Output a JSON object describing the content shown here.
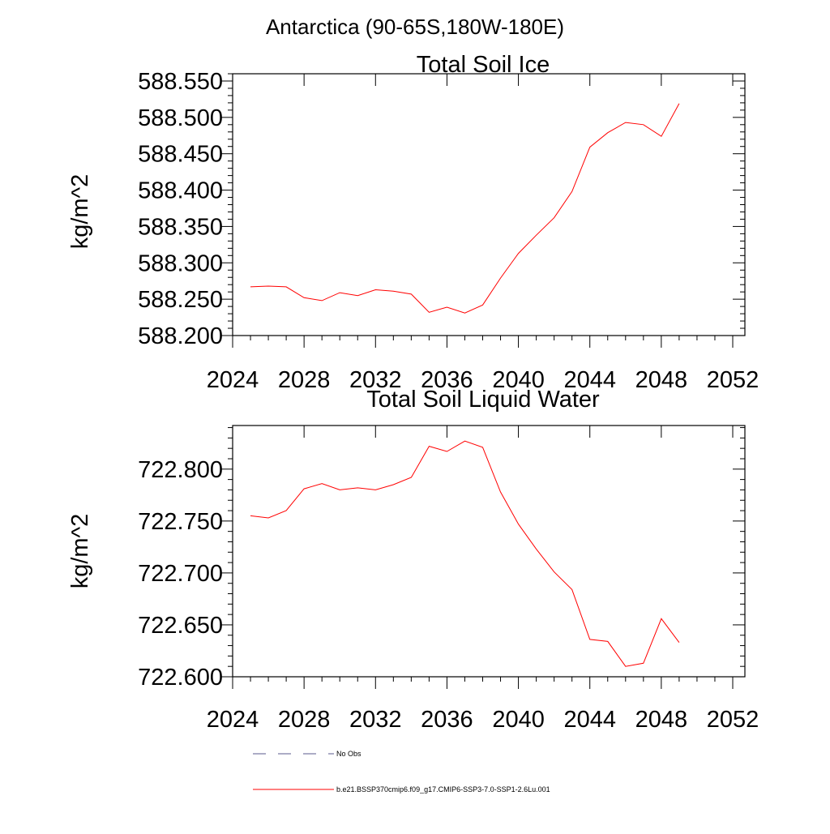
{
  "header": {
    "title": "Antarctica (90-65S,180W-180E)"
  },
  "chart_data": [
    {
      "type": "line",
      "title": "Total Soil Ice",
      "xlabel": "",
      "ylabel": "kg/m^2",
      "xlim": [
        2024,
        2052
      ],
      "ylim": [
        588.2,
        588.56
      ],
      "x_ticks": [
        2024,
        2028,
        2032,
        2036,
        2040,
        2044,
        2048,
        2052
      ],
      "x_tick_labels": [
        "2024",
        "2028",
        "2032",
        "2036",
        "2040",
        "2044",
        "2048",
        "2052"
      ],
      "y_ticks": [
        588.2,
        588.25,
        588.3,
        588.35,
        588.4,
        588.45,
        588.5,
        588.55
      ],
      "y_tick_labels": [
        "588.200",
        "588.250",
        "588.300",
        "588.350",
        "588.400",
        "588.450",
        "588.500",
        "588.550"
      ],
      "grid": false,
      "series": [
        {
          "name": "b.e21.BSSP370cmip6.f09_g17.CMIP6-SSP3-7.0-SSP1-2.6Lu.001",
          "color": "#ff0000",
          "x": [
            2025,
            2026,
            2027,
            2028,
            2029,
            2030,
            2031,
            2032,
            2033,
            2034,
            2035,
            2036,
            2037,
            2038,
            2039,
            2040,
            2041,
            2042,
            2043,
            2044,
            2045,
            2046,
            2047,
            2048,
            2049
          ],
          "values": [
            588.267,
            588.268,
            588.267,
            588.252,
            588.248,
            588.259,
            588.255,
            588.263,
            588.261,
            588.257,
            588.232,
            588.239,
            588.231,
            588.242,
            588.279,
            588.313,
            588.338,
            588.362,
            588.398,
            588.459,
            588.479,
            588.493,
            588.49,
            588.474,
            588.519
          ]
        }
      ]
    },
    {
      "type": "line",
      "title": "Total Soil Liquid Water",
      "xlabel": "",
      "ylabel": "kg/m^2",
      "xlim": [
        2024,
        2052
      ],
      "ylim": [
        722.6,
        722.842
      ],
      "x_ticks": [
        2024,
        2028,
        2032,
        2036,
        2040,
        2044,
        2048,
        2052
      ],
      "x_tick_labels": [
        "2024",
        "2028",
        "2032",
        "2036",
        "2040",
        "2044",
        "2048",
        "2052"
      ],
      "y_ticks": [
        722.6,
        722.65,
        722.7,
        722.75,
        722.8
      ],
      "y_tick_labels": [
        "722.600",
        "722.650",
        "722.700",
        "722.750",
        "722.800"
      ],
      "grid": false,
      "series": [
        {
          "name": "b.e21.BSSP370cmip6.f09_g17.CMIP6-SSP3-7.0-SSP1-2.6Lu.001",
          "color": "#ff0000",
          "x": [
            2025,
            2026,
            2027,
            2028,
            2029,
            2030,
            2031,
            2032,
            2033,
            2034,
            2035,
            2036,
            2037,
            2038,
            2039,
            2040,
            2041,
            2042,
            2043,
            2044,
            2045,
            2046,
            2047,
            2048,
            2049
          ],
          "values": [
            722.755,
            722.753,
            722.76,
            722.781,
            722.786,
            722.78,
            722.782,
            722.78,
            722.785,
            722.792,
            722.822,
            722.817,
            722.827,
            722.821,
            722.778,
            722.747,
            722.723,
            722.701,
            722.684,
            722.636,
            722.634,
            722.61,
            722.613,
            722.656,
            722.633
          ]
        }
      ]
    }
  ],
  "legend": {
    "items": [
      {
        "label": "No Obs",
        "color": "#5a5a8c",
        "style": "dashed"
      },
      {
        "label": "b.e21.BSSP370cmip6.f09_g17.CMIP6-SSP3-7.0-SSP1-2.6Lu.001",
        "color": "#ff0000",
        "style": "solid"
      }
    ]
  }
}
